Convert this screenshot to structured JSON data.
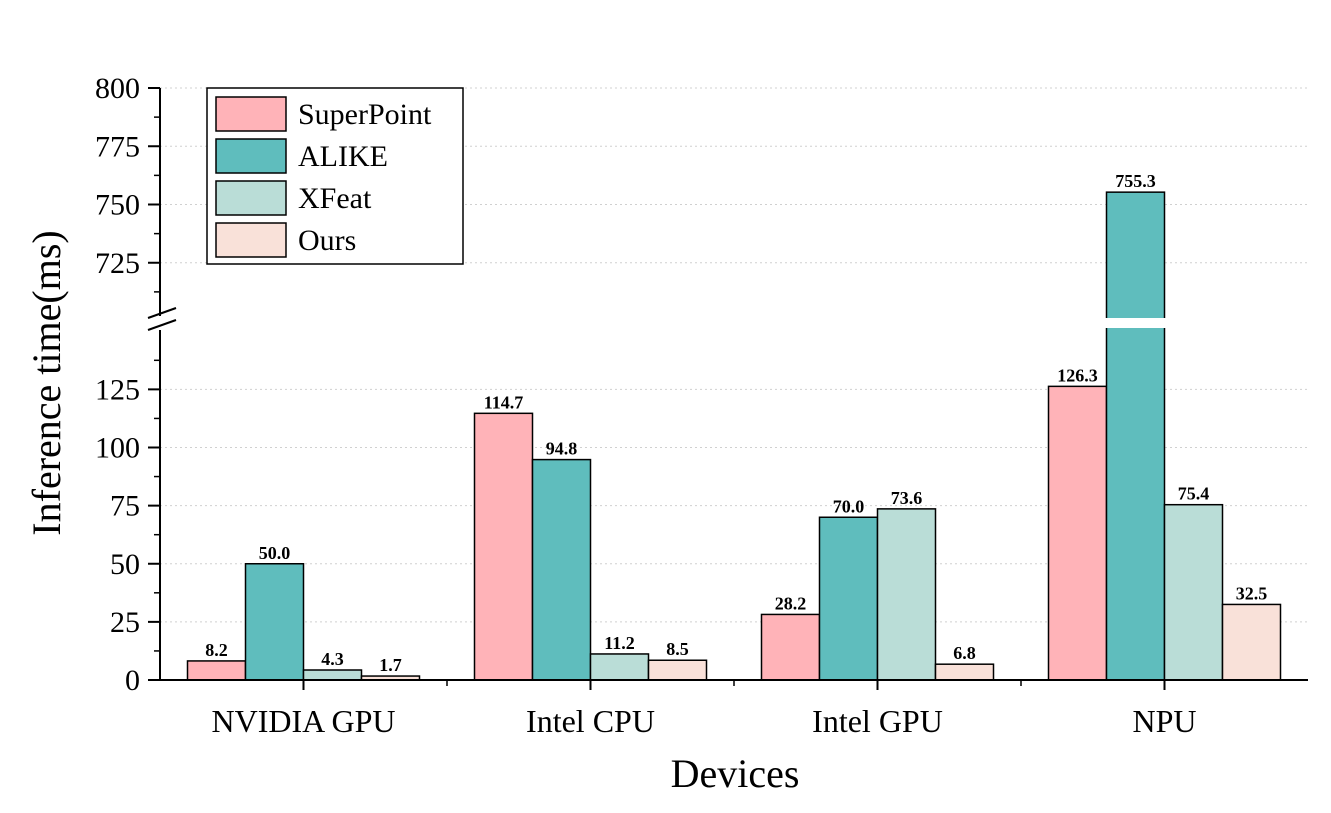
{
  "chart_data": {
    "type": "bar",
    "title": "",
    "xlabel": "Devices",
    "ylabel": "Inference time(ms)",
    "categories": [
      "NVIDIA GPU",
      "Intel CPU",
      "Intel GPU",
      "NPU"
    ],
    "series": [
      {
        "name": "SuperPoint",
        "values": [
          8.2,
          114.7,
          28.2,
          126.3
        ],
        "color": "#FFB3B8"
      },
      {
        "name": "ALIKE",
        "values": [
          50.0,
          94.8,
          70.0,
          755.3
        ],
        "color": "#5FBDBD"
      },
      {
        "name": "XFeat",
        "values": [
          4.3,
          11.2,
          73.6,
          75.4
        ],
        "color": "#BADDD7"
      },
      {
        "name": "Ours",
        "values": [
          1.7,
          8.5,
          6.8,
          32.5
        ],
        "color": "#F9E1D9"
      }
    ],
    "data_labels": [
      [
        "8.2",
        "114.7",
        "28.2",
        "126.3"
      ],
      [
        "50.0",
        "94.8",
        "70.0",
        "755.3"
      ],
      [
        "4.3",
        "11.2",
        "73.6",
        "75.4"
      ],
      [
        "1.7",
        "8.5",
        "6.8",
        "32.5"
      ]
    ],
    "y_axis_break": {
      "lower_range": [
        0,
        145
      ],
      "upper_range": [
        700,
        800
      ]
    },
    "lower_ticks": [
      "0",
      "25",
      "50",
      "75",
      "100",
      "125"
    ],
    "upper_ticks": [
      "725",
      "750",
      "775",
      "800"
    ],
    "grid": "horizontal dotted",
    "legend_position": "top-left"
  }
}
